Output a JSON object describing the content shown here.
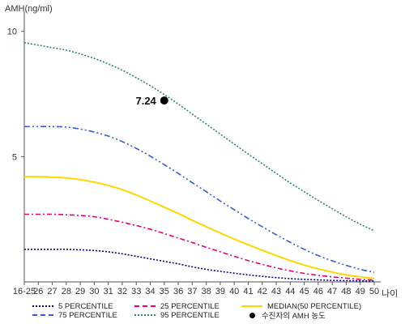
{
  "chart_data": {
    "type": "line",
    "ylabel": "AMH(ng/ml)",
    "xlabel": "나이",
    "x": [
      "16-25",
      "26",
      "27",
      "28",
      "29",
      "30",
      "31",
      "32",
      "33",
      "34",
      "35",
      "36",
      "37",
      "38",
      "39",
      "40",
      "41",
      "42",
      "43",
      "44",
      "45",
      "46",
      "47",
      "48",
      "49",
      "50"
    ],
    "ylim": [
      0,
      10.8
    ],
    "yticks": [
      5,
      10
    ],
    "grid": false,
    "legend_position": "bottom",
    "series": [
      {
        "name": "5 PERCENTILE",
        "color": "#000080",
        "dash": "2,2",
        "values": [
          1.3,
          1.3,
          1.3,
          1.3,
          1.28,
          1.25,
          1.2,
          1.12,
          1.02,
          0.92,
          0.82,
          0.72,
          0.6,
          0.5,
          0.42,
          0.35,
          0.28,
          0.22,
          0.17,
          0.13,
          0.1,
          0.08,
          0.06,
          0.05,
          0.04,
          0.03
        ]
      },
      {
        "name": "25 PERCENTILE",
        "color": "#e6007e",
        "dash": "6,3,2,3",
        "values": [
          2.7,
          2.7,
          2.7,
          2.68,
          2.65,
          2.6,
          2.5,
          2.38,
          2.25,
          2.1,
          1.93,
          1.75,
          1.57,
          1.38,
          1.2,
          1.02,
          0.85,
          0.7,
          0.56,
          0.44,
          0.34,
          0.26,
          0.2,
          0.15,
          0.1,
          0.07
        ]
      },
      {
        "name": "MEDIAN(50 PERCENTILE)",
        "color": "#ffd700",
        "dash": "",
        "values": [
          4.2,
          4.2,
          4.18,
          4.15,
          4.08,
          3.98,
          3.85,
          3.68,
          3.47,
          3.23,
          2.98,
          2.73,
          2.46,
          2.2,
          1.95,
          1.71,
          1.48,
          1.26,
          1.05,
          0.85,
          0.67,
          0.52,
          0.39,
          0.28,
          0.2,
          0.14
        ]
      },
      {
        "name": "75 PERCENTILE",
        "color": "#3a5ccc",
        "dash": "7,3,2,3,2,3",
        "values": [
          6.2,
          6.2,
          6.2,
          6.18,
          6.1,
          5.98,
          5.82,
          5.6,
          5.33,
          5.02,
          4.68,
          4.33,
          3.96,
          3.6,
          3.23,
          2.88,
          2.53,
          2.2,
          1.88,
          1.58,
          1.3,
          1.05,
          0.84,
          0.66,
          0.5,
          0.38
        ]
      },
      {
        "name": "95 PERCENTILE",
        "color": "#2e8b57",
        "dash": "2,2",
        "values": [
          9.55,
          9.45,
          9.35,
          9.25,
          9.1,
          8.92,
          8.7,
          8.45,
          8.15,
          7.83,
          7.48,
          7.1,
          6.7,
          6.3,
          5.9,
          5.5,
          5.1,
          4.72,
          4.33,
          3.95,
          3.6,
          3.25,
          2.92,
          2.6,
          2.3,
          2.04
        ]
      }
    ],
    "highlight": {
      "label": "수진자의 AMH 농도",
      "x": "35",
      "y": 7.24,
      "value_text": "7.24",
      "color": "#000000"
    }
  }
}
